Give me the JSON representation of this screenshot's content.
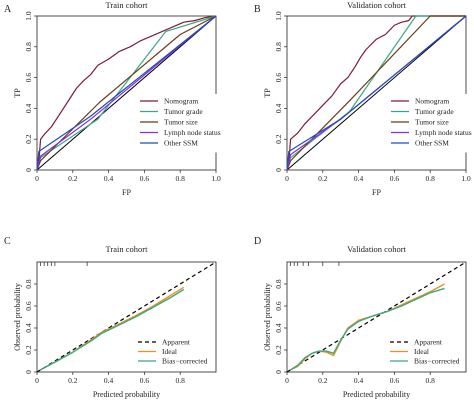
{
  "figure": {
    "panels": [
      "A",
      "B",
      "C",
      "D"
    ]
  },
  "chart_data": [
    {
      "type": "line",
      "label": "A",
      "title": "Train cohort",
      "xlabel": "FP",
      "ylabel": "TP",
      "xlim": [
        0,
        1
      ],
      "ylim": [
        0,
        1
      ],
      "xticks": [
        "0",
        "0.2",
        "0.4",
        "0.6",
        "0.8",
        "1.0"
      ],
      "yticks": [
        "0",
        "0.2",
        "0.4",
        "0.6",
        "0.8",
        "1.0"
      ],
      "legend_position": "bottom-right",
      "reference_line": {
        "x": [
          0,
          1
        ],
        "y": [
          0,
          1
        ],
        "color": "#000000"
      },
      "series": [
        {
          "name": "Nomogram",
          "color": "#7a1f35",
          "x": [
            0,
            0.01,
            0.02,
            0.04,
            0.08,
            0.12,
            0.17,
            0.22,
            0.26,
            0.3,
            0.34,
            0.4,
            0.46,
            0.52,
            0.58,
            0.64,
            0.7,
            0.76,
            0.82,
            0.88,
            0.94,
            1.0
          ],
          "y": [
            0,
            0.05,
            0.2,
            0.23,
            0.28,
            0.35,
            0.44,
            0.53,
            0.58,
            0.62,
            0.68,
            0.72,
            0.77,
            0.8,
            0.84,
            0.87,
            0.9,
            0.93,
            0.96,
            0.97,
            0.99,
            1.0
          ]
        },
        {
          "name": "Tumor grade",
          "color": "#3aa882",
          "x": [
            0,
            0.02,
            0.34,
            0.72,
            1.0
          ],
          "y": [
            0,
            0.08,
            0.33,
            0.9,
            1.0
          ]
        },
        {
          "name": "Tumor size",
          "color": "#6b3a16",
          "x": [
            0,
            0.02,
            0.35,
            0.8,
            1.0
          ],
          "y": [
            0,
            0.06,
            0.44,
            0.88,
            1.0
          ]
        },
        {
          "name": "Lymph node status",
          "color": "#8a2be2",
          "x": [
            0,
            0.02,
            0.3,
            1.0
          ],
          "y": [
            0,
            0.09,
            0.33,
            1.0
          ]
        },
        {
          "name": "Other SSM",
          "color": "#1f4fb8",
          "x": [
            0,
            0.01,
            0.3,
            1.0
          ],
          "y": [
            0,
            0.12,
            0.35,
            1.0
          ]
        }
      ]
    },
    {
      "type": "line",
      "label": "B",
      "title": "Validation cohort",
      "xlabel": "FP",
      "ylabel": "TP",
      "xlim": [
        0,
        1
      ],
      "ylim": [
        0,
        1
      ],
      "xticks": [
        "0",
        "0.2",
        "0.4",
        "0.6",
        "0.8",
        "1.0"
      ],
      "yticks": [
        "0",
        "0.2",
        "0.4",
        "0.6",
        "0.8",
        "1.0"
      ],
      "legend_position": "bottom-right",
      "reference_line": {
        "x": [
          0,
          1
        ],
        "y": [
          0,
          1
        ],
        "color": "#000000"
      },
      "series": [
        {
          "name": "Nomogram",
          "color": "#7a1f35",
          "x": [
            0,
            0.01,
            0.02,
            0.06,
            0.1,
            0.15,
            0.2,
            0.25,
            0.3,
            0.34,
            0.38,
            0.41,
            0.44,
            0.5,
            0.55,
            0.6,
            0.64,
            0.68,
            0.7,
            0.72,
            1.0
          ],
          "y": [
            0,
            0.05,
            0.2,
            0.24,
            0.3,
            0.36,
            0.42,
            0.48,
            0.56,
            0.6,
            0.67,
            0.73,
            0.78,
            0.85,
            0.88,
            0.94,
            0.96,
            0.97,
            1.0,
            1.0,
            1.0
          ]
        },
        {
          "name": "Tumor grade",
          "color": "#3aa882",
          "x": [
            0,
            0.02,
            0.35,
            0.72,
            1.0
          ],
          "y": [
            0,
            0.08,
            0.38,
            1.0,
            1.0
          ]
        },
        {
          "name": "Tumor size",
          "color": "#6b3a16",
          "x": [
            0,
            0.02,
            0.35,
            0.8,
            1.0
          ],
          "y": [
            0,
            0.06,
            0.45,
            1.0,
            1.0
          ]
        },
        {
          "name": "Lymph node status",
          "color": "#8a2be2",
          "x": [
            0,
            0.02,
            0.3,
            1.0
          ],
          "y": [
            0,
            0.1,
            0.33,
            1.0
          ]
        },
        {
          "name": "Other SSM",
          "color": "#1f4fb8",
          "x": [
            0,
            0.01,
            0.3,
            1.0
          ],
          "y": [
            0,
            0.12,
            0.33,
            1.0
          ]
        }
      ]
    },
    {
      "type": "line",
      "label": "C",
      "title": "Train cohort",
      "xlabel": "Predicted probability",
      "ylabel": "Observed probability",
      "xlim": [
        0,
        1
      ],
      "ylim": [
        0,
        1
      ],
      "xticks": [
        "0",
        "0.2",
        "0.4",
        "0.6",
        "0.8"
      ],
      "yticks": [
        "0",
        "0.2",
        "0.4",
        "0.6",
        "0.8"
      ],
      "legend_position": "bottom-right",
      "rug_x": [
        0.02,
        0.04,
        0.06,
        0.08,
        0.1,
        0.28
      ],
      "series": [
        {
          "name": "Apparent",
          "color": "#000000",
          "line_style": "dashed",
          "x": [
            0,
            1
          ],
          "y": [
            0,
            1
          ]
        },
        {
          "name": "Ideal",
          "color": "#f0901c",
          "x": [
            0.02,
            0.1,
            0.2,
            0.3,
            0.36,
            0.45,
            0.55,
            0.65,
            0.75,
            0.82
          ],
          "y": [
            0.02,
            0.09,
            0.18,
            0.29,
            0.36,
            0.43,
            0.51,
            0.6,
            0.7,
            0.77
          ]
        },
        {
          "name": "Bias−corrected",
          "color": "#3aa882",
          "x": [
            0.02,
            0.1,
            0.2,
            0.3,
            0.36,
            0.45,
            0.55,
            0.65,
            0.75,
            0.82
          ],
          "y": [
            0.02,
            0.09,
            0.18,
            0.28,
            0.35,
            0.42,
            0.5,
            0.59,
            0.68,
            0.75
          ]
        }
      ]
    },
    {
      "type": "line",
      "label": "D",
      "title": "Validation cohort",
      "xlabel": "Predicted probability",
      "ylabel": "Observed probability",
      "xlim": [
        0,
        1
      ],
      "ylim": [
        0,
        1
      ],
      "xticks": [
        "0",
        "0.2",
        "0.4",
        "0.6",
        "0.8"
      ],
      "yticks": [
        "0",
        "0.2",
        "0.4",
        "0.6",
        "0.8"
      ],
      "legend_position": "bottom-right",
      "rug_x": [
        0.02,
        0.04,
        0.06,
        0.09,
        0.12,
        0.2,
        0.29
      ],
      "series": [
        {
          "name": "Apparent",
          "color": "#000000",
          "line_style": "dashed",
          "x": [
            0,
            1
          ],
          "y": [
            0,
            1
          ]
        },
        {
          "name": "Ideal",
          "color": "#f0901c",
          "x": [
            0.02,
            0.06,
            0.1,
            0.14,
            0.18,
            0.22,
            0.26,
            0.3,
            0.34,
            0.4,
            0.48,
            0.56,
            0.64,
            0.72,
            0.8,
            0.88
          ],
          "y": [
            0.02,
            0.05,
            0.12,
            0.17,
            0.19,
            0.18,
            0.15,
            0.28,
            0.4,
            0.47,
            0.51,
            0.55,
            0.61,
            0.67,
            0.73,
            0.8
          ]
        },
        {
          "name": "Bias−corrected",
          "color": "#3aa882",
          "x": [
            0.02,
            0.06,
            0.1,
            0.14,
            0.18,
            0.22,
            0.26,
            0.3,
            0.34,
            0.4,
            0.48,
            0.56,
            0.64,
            0.72,
            0.8,
            0.88
          ],
          "y": [
            0.02,
            0.06,
            0.13,
            0.17,
            0.19,
            0.19,
            0.17,
            0.29,
            0.39,
            0.46,
            0.51,
            0.55,
            0.6,
            0.66,
            0.72,
            0.76
          ]
        }
      ]
    }
  ]
}
